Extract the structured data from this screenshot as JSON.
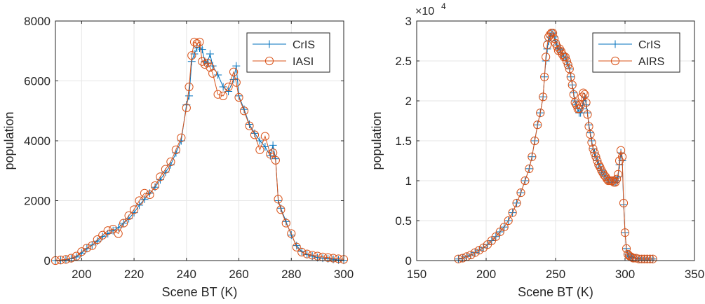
{
  "colors": {
    "crisMarker": "#0072bd",
    "otherMarker": "#d95319",
    "axis": "#262626",
    "grid": "#e6e6e6"
  },
  "chart_data": [
    {
      "type": "line",
      "xlabel": "Scene BT (K)",
      "ylabel": "population",
      "xlim": [
        190,
        300
      ],
      "ylim": [
        0,
        8000
      ],
      "xticks": [
        200,
        220,
        240,
        260,
        280,
        300
      ],
      "yticks": [
        0,
        2000,
        4000,
        6000,
        8000
      ],
      "exponent_label": "",
      "grid": true,
      "legend_position": "top-right",
      "series": [
        {
          "name": "CrIS",
          "marker": "plus",
          "x": [
            190,
            192,
            194,
            196,
            198,
            200,
            202,
            204,
            206,
            208,
            210,
            212,
            214,
            216,
            218,
            220,
            222,
            224,
            226,
            228,
            230,
            232,
            234,
            236,
            238,
            240,
            241,
            242,
            243,
            244,
            245,
            246,
            247,
            248,
            249,
            250,
            252,
            254,
            256,
            258,
            259,
            260,
            262,
            264,
            266,
            268,
            270,
            272,
            273,
            274,
            275,
            276,
            278,
            280,
            282,
            284,
            286,
            288,
            290,
            292,
            294,
            296,
            298,
            300
          ],
          "y": [
            0,
            10,
            30,
            60,
            120,
            250,
            400,
            520,
            650,
            800,
            900,
            1000,
            1100,
            1250,
            1400,
            1600,
            1850,
            2050,
            2250,
            2450,
            2700,
            2950,
            3200,
            3600,
            4000,
            5200,
            5500,
            6650,
            6900,
            7100,
            7100,
            7050,
            6650,
            6600,
            6900,
            6500,
            6200,
            5800,
            5650,
            6050,
            6500,
            5500,
            5050,
            4550,
            4250,
            4000,
            3800,
            3500,
            3850,
            3400,
            2000,
            1750,
            1300,
            850,
            500,
            300,
            200,
            150,
            100,
            80,
            60,
            40,
            20,
            10
          ]
        },
        {
          "name": "IASI",
          "marker": "circle",
          "x": [
            190,
            192,
            194,
            196,
            198,
            200,
            202,
            204,
            206,
            208,
            210,
            212,
            214,
            216,
            218,
            220,
            222,
            224,
            226,
            228,
            230,
            232,
            234,
            236,
            238,
            240,
            241,
            242,
            243,
            244,
            245,
            246,
            247,
            248,
            249,
            250,
            252,
            254,
            256,
            258,
            259,
            260,
            262,
            264,
            266,
            268,
            270,
            272,
            273,
            274,
            275,
            276,
            278,
            280,
            282,
            284,
            286,
            288,
            290,
            292,
            294,
            296,
            298,
            300
          ],
          "y": [
            0,
            20,
            40,
            80,
            150,
            300,
            420,
            500,
            700,
            850,
            1000,
            1050,
            900,
            1250,
            1500,
            1700,
            2000,
            2250,
            2200,
            2500,
            2800,
            3050,
            3300,
            3700,
            4100,
            5100,
            5800,
            6850,
            7300,
            7250,
            7300,
            6650,
            6550,
            6600,
            6450,
            6250,
            5550,
            5500,
            5800,
            6300,
            5950,
            5450,
            5000,
            4500,
            4200,
            3700,
            4150,
            3550,
            3600,
            3350,
            2050,
            1700,
            1250,
            900,
            450,
            280,
            220,
            180,
            150,
            120,
            100,
            80,
            60,
            40
          ]
        }
      ]
    },
    {
      "type": "line",
      "xlabel": "Scene BT (K)",
      "ylabel": "population",
      "xlim": [
        150,
        350
      ],
      "ylim": [
        0,
        3
      ],
      "xticks": [
        150,
        200,
        250,
        300,
        350
      ],
      "yticks": [
        0,
        0.5,
        1,
        1.5,
        2,
        2.5,
        3
      ],
      "yticklabels": [
        "0",
        "0.5",
        "1",
        "1.5",
        "2",
        "2.5",
        "3"
      ],
      "exponent_label": "×10",
      "exponent_power": "4",
      "grid": true,
      "legend_position": "top-right",
      "series": [
        {
          "name": "CrIS",
          "marker": "plus",
          "x": [
            180,
            183,
            186,
            189,
            192,
            195,
            198,
            201,
            204,
            207,
            210,
            213,
            216,
            219,
            222,
            225,
            228,
            231,
            233,
            235,
            237,
            239,
            241,
            242,
            243,
            244,
            245,
            246,
            247,
            248,
            249,
            250,
            251,
            252,
            253,
            254,
            255,
            256,
            257,
            258,
            259,
            260,
            261,
            262,
            263,
            264,
            265,
            266,
            267,
            268,
            269,
            270,
            271,
            272,
            273,
            274,
            275,
            276,
            277,
            278,
            279,
            280,
            281,
            282,
            283,
            284,
            285,
            286,
            287,
            288,
            289,
            290,
            291,
            292,
            293,
            294,
            295,
            296,
            297,
            298,
            299,
            300,
            301,
            302,
            303,
            304,
            305,
            306,
            308,
            310,
            312,
            314,
            316,
            318,
            320
          ],
          "y": [
            0.02,
            0.03,
            0.05,
            0.07,
            0.1,
            0.13,
            0.16,
            0.2,
            0.25,
            0.3,
            0.36,
            0.42,
            0.5,
            0.6,
            0.72,
            0.85,
            1.0,
            1.15,
            1.3,
            1.5,
            1.7,
            1.85,
            2.05,
            2.3,
            2.5,
            2.65,
            2.75,
            2.8,
            2.85,
            2.85,
            2.8,
            2.75,
            2.7,
            2.65,
            2.65,
            2.6,
            2.6,
            2.55,
            2.55,
            2.5,
            2.45,
            2.4,
            2.3,
            2.2,
            2.1,
            2.0,
            1.95,
            1.9,
            1.85,
            1.85,
            1.9,
            2.0,
            2.05,
            1.95,
            1.85,
            1.7,
            1.6,
            1.5,
            1.4,
            1.35,
            1.3,
            1.25,
            1.2,
            1.17,
            1.13,
            1.1,
            1.07,
            1.05,
            1.02,
            1.0,
            1.0,
            1.0,
            1.0,
            0.98,
            0.98,
            1.0,
            1.05,
            1.2,
            1.35,
            1.25,
            0.7,
            0.35,
            0.15,
            0.08,
            0.06,
            0.05,
            0.04,
            0.03,
            0.03,
            0.02,
            0.02,
            0.02,
            0.02,
            0.02,
            0.02
          ]
        },
        {
          "name": "AIRS",
          "marker": "circle",
          "x": [
            180,
            183,
            186,
            189,
            192,
            195,
            198,
            201,
            204,
            207,
            210,
            213,
            216,
            219,
            222,
            225,
            228,
            231,
            233,
            235,
            237,
            239,
            241,
            242,
            243,
            244,
            245,
            246,
            247,
            248,
            249,
            250,
            251,
            252,
            253,
            254,
            255,
            256,
            257,
            258,
            259,
            260,
            261,
            262,
            263,
            264,
            265,
            266,
            267,
            268,
            269,
            270,
            271,
            272,
            273,
            274,
            275,
            276,
            277,
            278,
            279,
            280,
            281,
            282,
            283,
            284,
            285,
            286,
            287,
            288,
            289,
            290,
            291,
            292,
            293,
            294,
            295,
            296,
            297,
            298,
            299,
            300,
            301,
            302,
            303,
            304,
            305,
            306,
            308,
            310,
            312,
            314,
            316,
            318,
            320
          ],
          "y": [
            0.02,
            0.03,
            0.05,
            0.07,
            0.1,
            0.13,
            0.16,
            0.2,
            0.25,
            0.3,
            0.36,
            0.42,
            0.5,
            0.6,
            0.72,
            0.85,
            1.0,
            1.15,
            1.3,
            1.5,
            1.7,
            1.85,
            2.05,
            2.3,
            2.55,
            2.7,
            2.8,
            2.83,
            2.85,
            2.85,
            2.78,
            2.72,
            2.68,
            2.63,
            2.65,
            2.62,
            2.58,
            2.55,
            2.55,
            2.5,
            2.45,
            2.4,
            2.3,
            2.2,
            2.08,
            1.98,
            1.95,
            1.9,
            1.9,
            1.95,
            2.05,
            2.1,
            2.08,
            1.98,
            1.83,
            1.68,
            1.58,
            1.48,
            1.4,
            1.35,
            1.3,
            1.25,
            1.2,
            1.17,
            1.13,
            1.1,
            1.07,
            1.05,
            1.02,
            1.0,
            1.0,
            1.0,
            1.0,
            0.98,
            0.98,
            1.02,
            1.08,
            1.25,
            1.38,
            1.3,
            0.72,
            0.35,
            0.15,
            0.08,
            0.06,
            0.05,
            0.04,
            0.03,
            0.03,
            0.02,
            0.02,
            0.02,
            0.02,
            0.02,
            0.02
          ]
        }
      ]
    }
  ]
}
